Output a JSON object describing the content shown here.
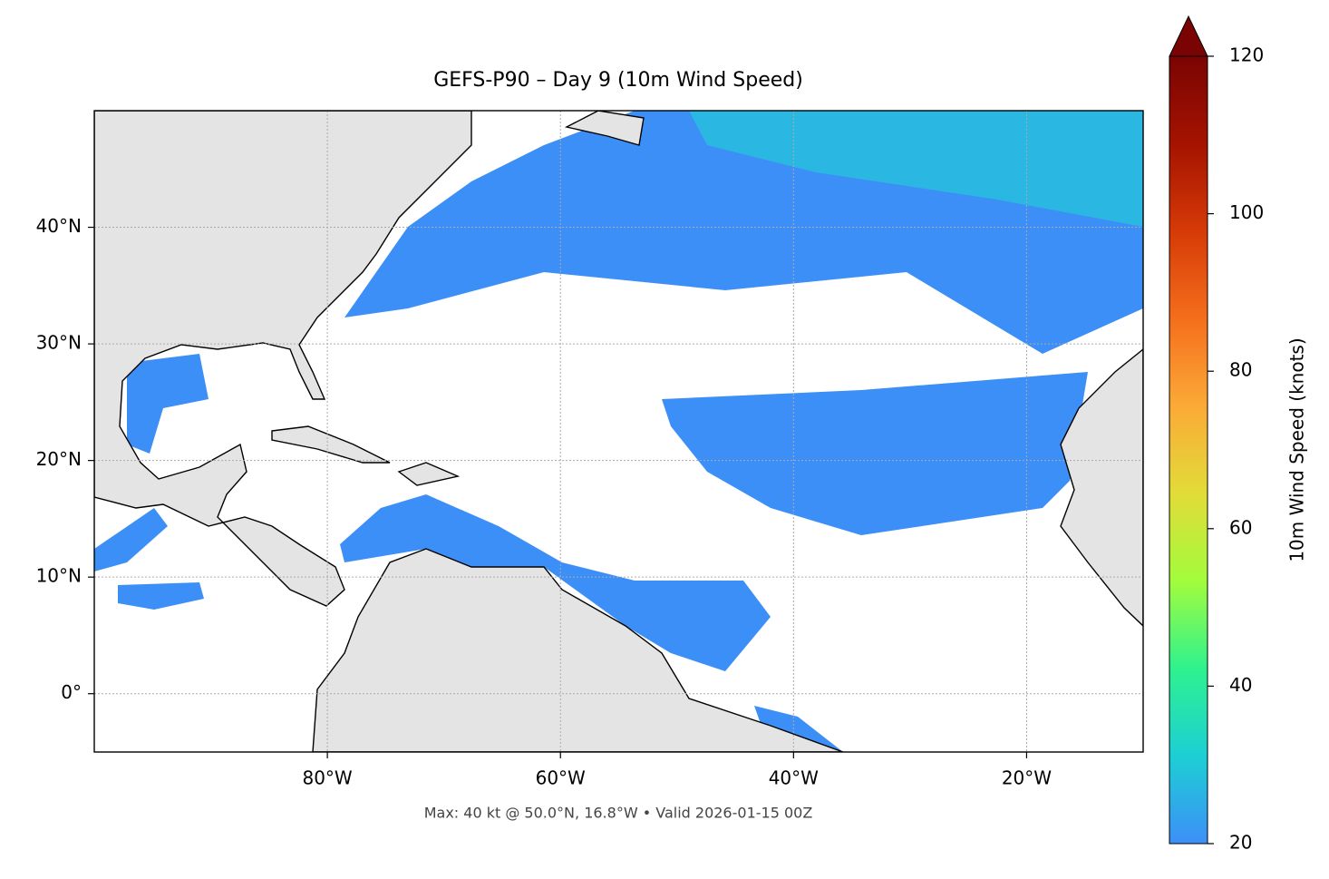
{
  "chart_data": {
    "type": "map",
    "title": "GEFS-P90 – Day 9 (10m Wind Speed)",
    "caption": "Max: 40 kt @ 50.0°N, 16.8°W • Valid 2026-01-15 00Z",
    "xlim": [
      -100,
      -10
    ],
    "ylim": [
      -5,
      50
    ],
    "xticks": [
      {
        "value": -80,
        "label": "80°W"
      },
      {
        "value": -60,
        "label": "60°W"
      },
      {
        "value": -40,
        "label": "40°W"
      },
      {
        "value": -20,
        "label": "20°W"
      }
    ],
    "yticks": [
      {
        "value": 0,
        "label": "0°"
      },
      {
        "value": 10,
        "label": "10°N"
      },
      {
        "value": 20,
        "label": "20°N"
      },
      {
        "value": 30,
        "label": "30°N"
      },
      {
        "value": 40,
        "label": "40°N"
      }
    ],
    "grid": true,
    "colorbar": {
      "label": "10m Wind Speed (knots)",
      "lim": [
        20,
        120
      ],
      "ticks": [
        20,
        40,
        60,
        80,
        100,
        120
      ],
      "colormap": [
        "#3d8ff8",
        "#1ccfd4",
        "#2ef28f",
        "#a2fc3c",
        "#e2dc38",
        "#fbaa37",
        "#f56e1c",
        "#d63a07",
        "#a51301",
        "#7a0403"
      ]
    }
  }
}
